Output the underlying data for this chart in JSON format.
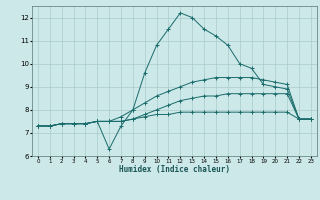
{
  "xlabel": "Humidex (Indice chaleur)",
  "bg_color": "#cce8e8",
  "grid_color": "#aacccc",
  "line_color": "#1a6b6b",
  "xlim": [
    -0.5,
    23.5
  ],
  "ylim": [
    6,
    12.5
  ],
  "yticks": [
    6,
    7,
    8,
    9,
    10,
    11,
    12
  ],
  "xticks": [
    0,
    1,
    2,
    3,
    4,
    5,
    6,
    7,
    8,
    9,
    10,
    11,
    12,
    13,
    14,
    15,
    16,
    17,
    18,
    19,
    20,
    21,
    22,
    23
  ],
  "series": [
    [
      0,
      7.3
    ],
    [
      1,
      7.3
    ],
    [
      2,
      7.4
    ],
    [
      3,
      7.4
    ],
    [
      4,
      7.4
    ],
    [
      5,
      7.5
    ],
    [
      6,
      6.3
    ],
    [
      7,
      7.3
    ],
    [
      8,
      8.0
    ],
    [
      9,
      9.6
    ],
    [
      10,
      10.8
    ],
    [
      11,
      11.5
    ],
    [
      12,
      12.2
    ],
    [
      13,
      12.0
    ],
    [
      14,
      11.5
    ],
    [
      15,
      11.2
    ],
    [
      16,
      10.8
    ],
    [
      17,
      10.0
    ],
    [
      18,
      9.8
    ],
    [
      19,
      9.1
    ],
    [
      20,
      9.0
    ],
    [
      21,
      8.9
    ],
    [
      22,
      7.6
    ],
    [
      23,
      7.6
    ]
  ],
  "series2": [
    [
      0,
      7.3
    ],
    [
      1,
      7.3
    ],
    [
      2,
      7.4
    ],
    [
      3,
      7.4
    ],
    [
      4,
      7.4
    ],
    [
      5,
      7.5
    ],
    [
      6,
      7.5
    ],
    [
      7,
      7.7
    ],
    [
      8,
      8.0
    ],
    [
      9,
      8.3
    ],
    [
      10,
      8.6
    ],
    [
      11,
      8.8
    ],
    [
      12,
      9.0
    ],
    [
      13,
      9.2
    ],
    [
      14,
      9.3
    ],
    [
      15,
      9.4
    ],
    [
      16,
      9.4
    ],
    [
      17,
      9.4
    ],
    [
      18,
      9.4
    ],
    [
      19,
      9.3
    ],
    [
      20,
      9.2
    ],
    [
      21,
      9.1
    ],
    [
      22,
      7.6
    ],
    [
      23,
      7.6
    ]
  ],
  "series3": [
    [
      0,
      7.3
    ],
    [
      1,
      7.3
    ],
    [
      2,
      7.4
    ],
    [
      3,
      7.4
    ],
    [
      4,
      7.4
    ],
    [
      5,
      7.5
    ],
    [
      6,
      7.5
    ],
    [
      7,
      7.5
    ],
    [
      8,
      7.6
    ],
    [
      9,
      7.8
    ],
    [
      10,
      8.0
    ],
    [
      11,
      8.2
    ],
    [
      12,
      8.4
    ],
    [
      13,
      8.5
    ],
    [
      14,
      8.6
    ],
    [
      15,
      8.6
    ],
    [
      16,
      8.7
    ],
    [
      17,
      8.7
    ],
    [
      18,
      8.7
    ],
    [
      19,
      8.7
    ],
    [
      20,
      8.7
    ],
    [
      21,
      8.7
    ],
    [
      22,
      7.6
    ],
    [
      23,
      7.6
    ]
  ],
  "series4": [
    [
      0,
      7.3
    ],
    [
      1,
      7.3
    ],
    [
      2,
      7.4
    ],
    [
      3,
      7.4
    ],
    [
      4,
      7.4
    ],
    [
      5,
      7.5
    ],
    [
      6,
      7.5
    ],
    [
      7,
      7.5
    ],
    [
      8,
      7.6
    ],
    [
      9,
      7.7
    ],
    [
      10,
      7.8
    ],
    [
      11,
      7.8
    ],
    [
      12,
      7.9
    ],
    [
      13,
      7.9
    ],
    [
      14,
      7.9
    ],
    [
      15,
      7.9
    ],
    [
      16,
      7.9
    ],
    [
      17,
      7.9
    ],
    [
      18,
      7.9
    ],
    [
      19,
      7.9
    ],
    [
      20,
      7.9
    ],
    [
      21,
      7.9
    ],
    [
      22,
      7.6
    ],
    [
      23,
      7.6
    ]
  ]
}
